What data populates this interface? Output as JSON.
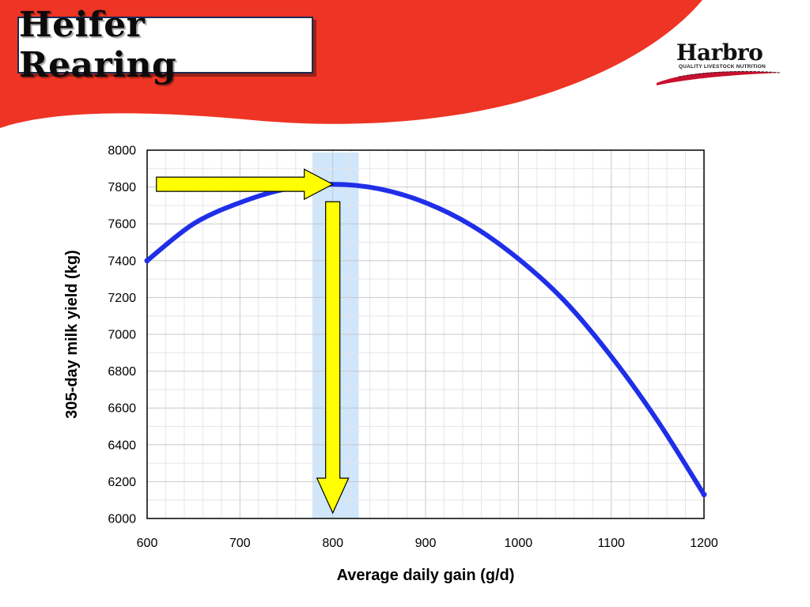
{
  "slide": {
    "title": "Heifer Rearing",
    "logo": {
      "name": "Harbro",
      "tagline": "QUALITY LIVESTOCK NUTRITION"
    },
    "colors": {
      "banner": "#ee3424",
      "curve": "#1f2fe8",
      "arrow": "#ffff00",
      "highlight": "#cfe6fb"
    }
  },
  "chart_data": {
    "type": "line",
    "title": "",
    "xlabel": "Average daily gain (g/d)",
    "ylabel": "305-day milk yield (kg)",
    "xlim": [
      600,
      1200
    ],
    "ylim": [
      6000,
      8000
    ],
    "x_ticks": [
      600,
      700,
      800,
      900,
      1000,
      1100,
      1200
    ],
    "y_ticks": [
      6000,
      6200,
      6400,
      6600,
      6800,
      7000,
      7200,
      7400,
      7600,
      7800,
      8000
    ],
    "grid": true,
    "series": [
      {
        "x": [
          600,
          650,
          700,
          750,
          800,
          850,
          900,
          950,
          1000,
          1050,
          1100,
          1150,
          1200
        ],
        "y": [
          7400,
          7600,
          7715,
          7790,
          7815,
          7790,
          7715,
          7590,
          7410,
          7180,
          6880,
          6530,
          6130
        ]
      }
    ],
    "highlight_band": [
      778,
      828
    ],
    "annotations": [
      {
        "type": "arrow",
        "from": [
          610,
          7815
        ],
        "to": [
          800,
          7815
        ]
      },
      {
        "type": "arrow",
        "from": [
          800,
          7720
        ],
        "to": [
          800,
          6030
        ]
      }
    ]
  }
}
